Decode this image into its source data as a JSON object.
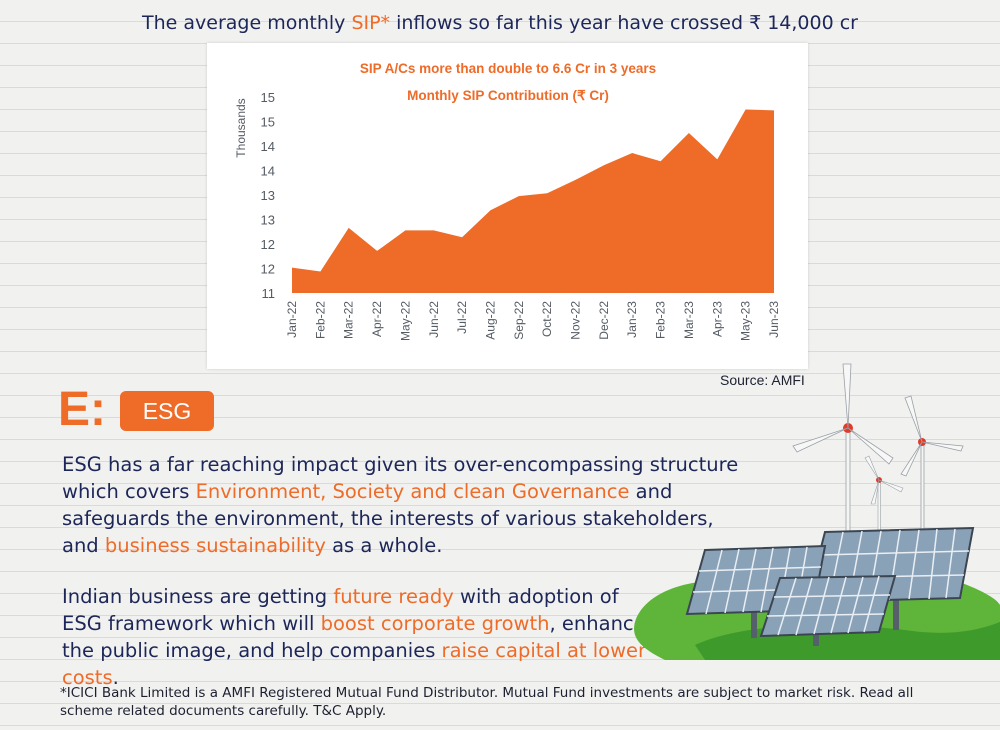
{
  "headline": {
    "before": "The average monthly ",
    "highlight": "SIP*",
    "after": " inflows so far this year have crossed ₹ 14,000 cr"
  },
  "chart_data": {
    "type": "area",
    "title": "SIP A/Cs more than double to 6.6 Cr in 3 years",
    "subtitle": "Monthly SIP Contribution (₹ Cr)",
    "ylabel": "Thousands",
    "xlabel": "",
    "categories": [
      "Jan-22",
      "Feb-22",
      "Mar-22",
      "Apr-22",
      "May-22",
      "Jun-22",
      "Jul-22",
      "Aug-22",
      "Sep-22",
      "Oct-22",
      "Nov-22",
      "Dec-22",
      "Jan-23",
      "Feb-23",
      "Mar-23",
      "Apr-23",
      "May-23",
      "Jun-23"
    ],
    "values": [
      11.52,
      11.44,
      12.33,
      11.86,
      12.28,
      12.28,
      12.14,
      12.69,
      12.98,
      13.04,
      13.31,
      13.61,
      13.86,
      13.69,
      14.27,
      13.73,
      14.75,
      14.73
    ],
    "ylim": [
      11,
      15.25
    ],
    "yticks": [
      11,
      11.5,
      12,
      12.5,
      13,
      13.5,
      14,
      14.5,
      15
    ],
    "ytick_labels": [
      "11",
      "12",
      "12",
      "13",
      "13",
      "14",
      "14",
      "15",
      "15"
    ],
    "color": "#ee6b28",
    "grid": false,
    "legend": "none"
  },
  "source": "Source: AMFI",
  "esg": {
    "letter": "E:",
    "badge": "ESG"
  },
  "paragraph1": [
    {
      "text": "ESG has a far reaching impact given its over-encompassing structure which covers ",
      "hl": false
    },
    {
      "text": "Environment, Society and clean Governance",
      "hl": true
    },
    {
      "text": " and safeguards the environment, the interests of various stakeholders, and ",
      "hl": false
    },
    {
      "text": "business sustainability",
      "hl": true
    },
    {
      "text": " as a whole.",
      "hl": false
    }
  ],
  "paragraph2": [
    {
      "text": "Indian business are getting ",
      "hl": false
    },
    {
      "text": "future ready",
      "hl": true
    },
    {
      "text": " with adoption of ESG framework which will ",
      "hl": false
    },
    {
      "text": "boost corporate growth",
      "hl": true
    },
    {
      "text": ", enhance the public image, and help companies ",
      "hl": false
    },
    {
      "text": "raise capital at lower costs",
      "hl": true
    },
    {
      "text": ".",
      "hl": false
    }
  ],
  "footnote": "*ICICI Bank Limited is a AMFI Registered Mutual Fund Distributor. Mutual Fund investments are subject to market risk. Read all scheme related documents carefully. T&C Apply.",
  "colors": {
    "accent": "#ee6b28",
    "navy": "#1d2658"
  }
}
